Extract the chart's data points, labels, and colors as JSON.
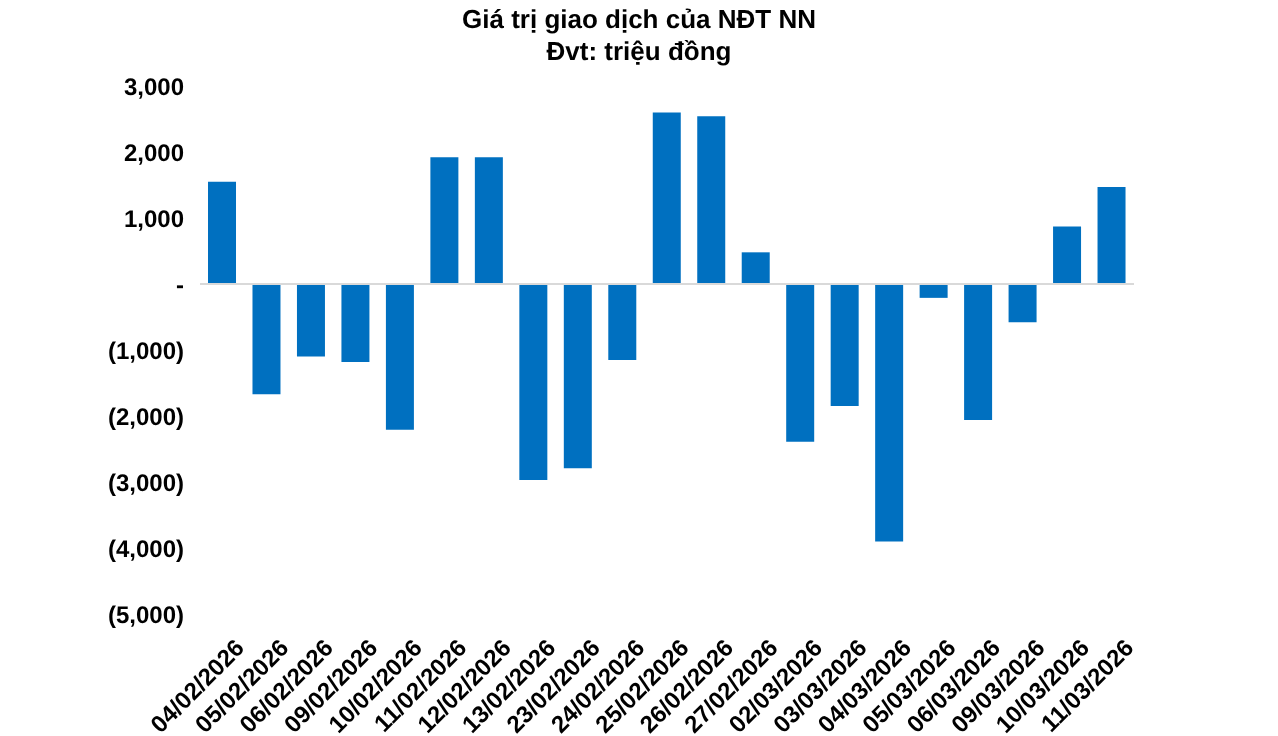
{
  "chart_data": {
    "type": "bar",
    "title": "Giá trị giao dịch của NĐT NN",
    "subtitle": "Đvt: triệu đồng",
    "categories": [
      "04/02/2026",
      "05/02/2026",
      "06/02/2026",
      "09/02/2026",
      "10/02/2026",
      "11/02/2026",
      "12/02/2026",
      "13/02/2026",
      "23/02/2026",
      "24/02/2026",
      "25/02/2026",
      "26/02/2026",
      "27/02/2026",
      "02/03/2026",
      "03/03/2026",
      "04/03/2026",
      "05/03/2026",
      "06/03/2026",
      "09/03/2026",
      "10/03/2026",
      "11/03/2026"
    ],
    "values": [
      1550,
      -1670,
      -1100,
      -1180,
      -2210,
      1920,
      1920,
      -2970,
      -2790,
      -1150,
      2600,
      2540,
      480,
      -2390,
      -1850,
      -3900,
      -210,
      -2060,
      -580,
      870,
      1470
    ],
    "color": "#0070c0",
    "ylim": [
      -5000,
      3000
    ],
    "yticks": [
      {
        "value": 3000,
        "label": "3,000"
      },
      {
        "value": 2000,
        "label": "2,000"
      },
      {
        "value": 1000,
        "label": "1,000"
      },
      {
        "value": 0,
        "label": "-"
      },
      {
        "value": -1000,
        "label": "(1,000)"
      },
      {
        "value": -2000,
        "label": "(2,000)"
      },
      {
        "value": -3000,
        "label": "(3,000)"
      },
      {
        "value": -4000,
        "label": "(4,000)"
      },
      {
        "value": -5000,
        "label": "(5,000)"
      }
    ],
    "ref_lines": [
      {
        "axis": "y",
        "value": 0,
        "color": "#d9d9d9"
      }
    ],
    "legend": false
  }
}
